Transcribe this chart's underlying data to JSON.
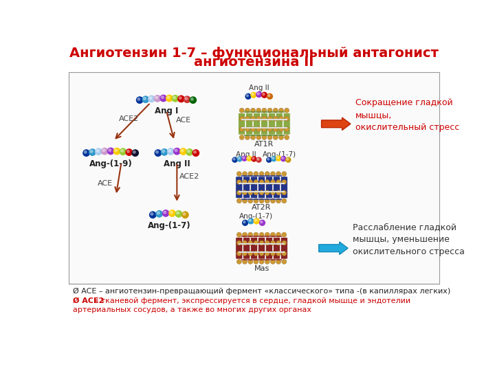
{
  "title_line1": "Ангиотензин 1-7 – функциональный антагонист",
  "title_line2": "ангиотензина II",
  "title_color": "#cc0000",
  "title_fontsize": 14,
  "bg_color": "#ffffff",
  "text_red": "#cc0000",
  "text_dark": "#333333",
  "footer1": "Ø ACE – ангиотензин-превращающий фермент «классического» типа -(в капиллярах легких)",
  "footer2_bold": "Ø ACE2",
  "footer2_rest": " – тканевой фермент, экспрессируется в сердце, гладкой мышце и эндотелии",
  "footer3": "артериальных сосудов, а также во многих других органах",
  "footer_fontsize": 8.0,
  "label_ang1": "Ang I",
  "label_ang9": "Ang-(1-9)",
  "label_ang2": "Ang II",
  "label_ang17": "Ang-(1-7)",
  "label_ace": "ACE",
  "label_ace2": "ACE2",
  "label_at1r": "AT1R",
  "label_at2r": "AT2R",
  "label_mas": "Mas",
  "label_angII_top": "Ang II",
  "label_angII_mid": "Ang II",
  "label_ang17_mid": "Ang-(1-7)",
  "label_ang17_bot": "Ang-(1-7)",
  "text_red_box1": "Сокращение гладкой\nмышцы,\nокислительный стресс",
  "text_blue_box2": "Расслабление гладкой\nмышцы, уменьшение\nокислительного стресса",
  "ball_colors_ang1": [
    "#003399",
    "#3399cc",
    "#aaccee",
    "#cc99cc",
    "#9933cc",
    "#ffcc00",
    "#99cc33",
    "#cc0000",
    "#cc3333",
    "#006600"
  ],
  "ball_colors_ang9": [
    "#003399",
    "#3399cc",
    "#aaccee",
    "#cc99cc",
    "#9933cc",
    "#ffcc00",
    "#99cc33",
    "#cc0000",
    "#111133"
  ],
  "ball_colors_ang2_left": [
    "#003399",
    "#3399cc",
    "#aaccee",
    "#9933cc",
    "#ffcc00",
    "#99cc33",
    "#cc0000"
  ],
  "ball_colors_ang17_left": [
    "#003399",
    "#3399cc",
    "#9933cc",
    "#ffcc00",
    "#99cc33",
    "#cc9900"
  ],
  "ball_colors_angII_top": [
    "#003399",
    "#ffcc00",
    "#9933cc",
    "#cc0000",
    "#cc6600"
  ],
  "ball_colors_angII_mid": [
    "#003399",
    "#3399cc",
    "#9933cc",
    "#ffcc00",
    "#cc0000",
    "#cc3333"
  ],
  "ball_colors_ang17_mid": [
    "#003399",
    "#3399cc",
    "#ffcc00",
    "#9933cc",
    "#cc9900"
  ],
  "ball_colors_ang17_mas": [
    "#003399",
    "#3399cc",
    "#ffcc00",
    "#9933cc"
  ],
  "receptor_at1r_color": "#8aaa44",
  "receptor_at2r_color": "#223388",
  "receptor_mas_color": "#882222",
  "arrow_red": "#dd3300",
  "arrow_blue": "#22aadd"
}
